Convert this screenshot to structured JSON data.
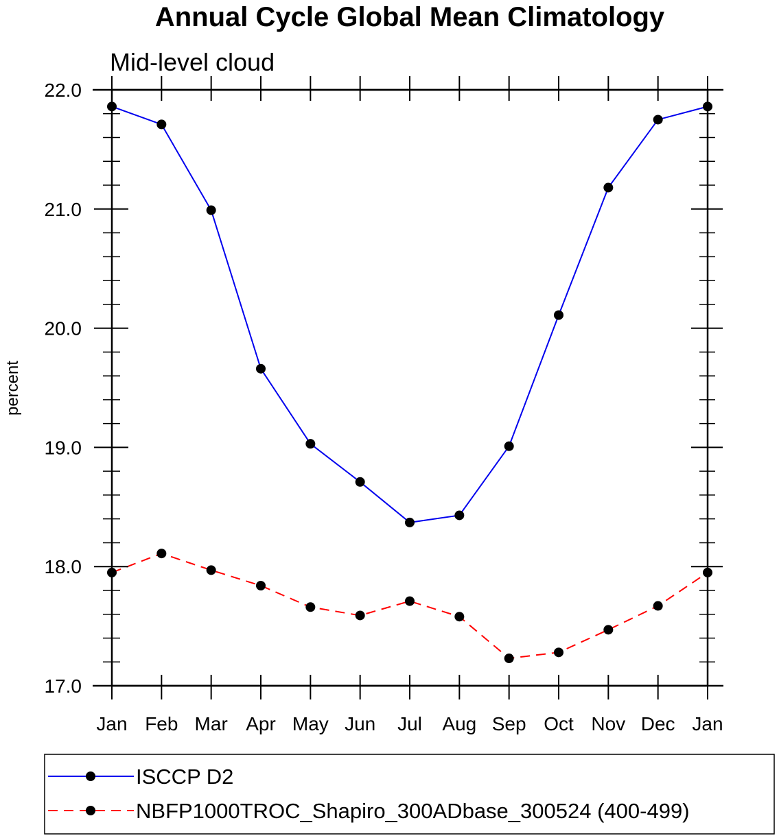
{
  "chart_data": {
    "type": "line",
    "title": "Annual Cycle Global Mean Climatology",
    "subtitle": "Mid-level cloud",
    "xlabel": "",
    "ylabel": "percent",
    "categories": [
      "Jan",
      "Feb",
      "Mar",
      "Apr",
      "May",
      "Jun",
      "Jul",
      "Aug",
      "Sep",
      "Oct",
      "Nov",
      "Dec",
      "Jan"
    ],
    "ylim": [
      17.0,
      22.0
    ],
    "yticks": [
      "17.0",
      "18.0",
      "19.0",
      "20.0",
      "21.0",
      "22.0"
    ],
    "grid": false,
    "legend_position": "bottom",
    "series": [
      {
        "name": "ISCCP D2",
        "color": "#0000ee",
        "line_style": "solid",
        "marker": "filled-circle",
        "values": [
          21.86,
          21.71,
          20.99,
          19.66,
          19.03,
          18.71,
          18.37,
          18.43,
          19.01,
          20.11,
          21.18,
          21.75,
          21.86
        ]
      },
      {
        "name": "NBFP1000TROC_Shapiro_300ADbase_300524 (400-499)",
        "color": "#ff0000",
        "line_style": "dashed",
        "marker": "filled-circle",
        "values": [
          17.95,
          18.11,
          17.97,
          17.84,
          17.66,
          17.59,
          17.71,
          17.58,
          17.23,
          17.28,
          17.47,
          17.67,
          17.95
        ]
      }
    ]
  }
}
